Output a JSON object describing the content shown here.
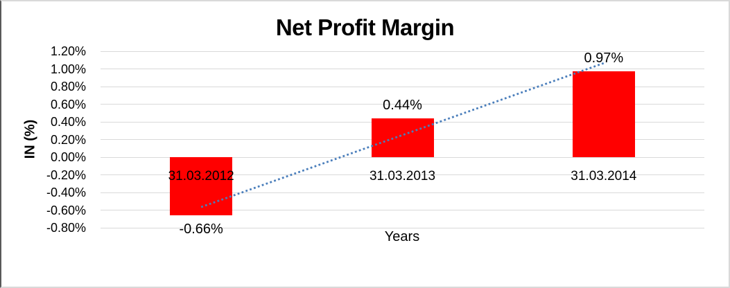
{
  "chart_data": {
    "type": "bar",
    "title": "Net Profit Margin",
    "xlabel": "Years",
    "ylabel": "IN (%)",
    "categories": [
      "31.03.2012",
      "31.03.2013",
      "31.03.2014"
    ],
    "values": [
      -0.66,
      0.44,
      0.97
    ],
    "data_labels": [
      "-0.66%",
      "0.44%",
      "0.97%"
    ],
    "value_unit": "percent",
    "y_tick_labels": [
      "1.20%",
      "1.00%",
      "0.80%",
      "0.60%",
      "0.40%",
      "0.20%",
      "0.00%",
      "-0.20%",
      "-0.40%",
      "-0.60%",
      "-0.80%"
    ],
    "ylim": [
      -0.8,
      1.2
    ],
    "y_step": 0.2,
    "grid": true,
    "legend": "none",
    "trendline": {
      "type": "linear",
      "style": "dotted",
      "start_value": -0.565,
      "end_value": 1.065
    },
    "colors": {
      "bar": "#ff0000",
      "trendline": "#4a7ebb",
      "gridline": "#d9d9d9",
      "text": "#000000",
      "background": "#ffffff"
    }
  }
}
